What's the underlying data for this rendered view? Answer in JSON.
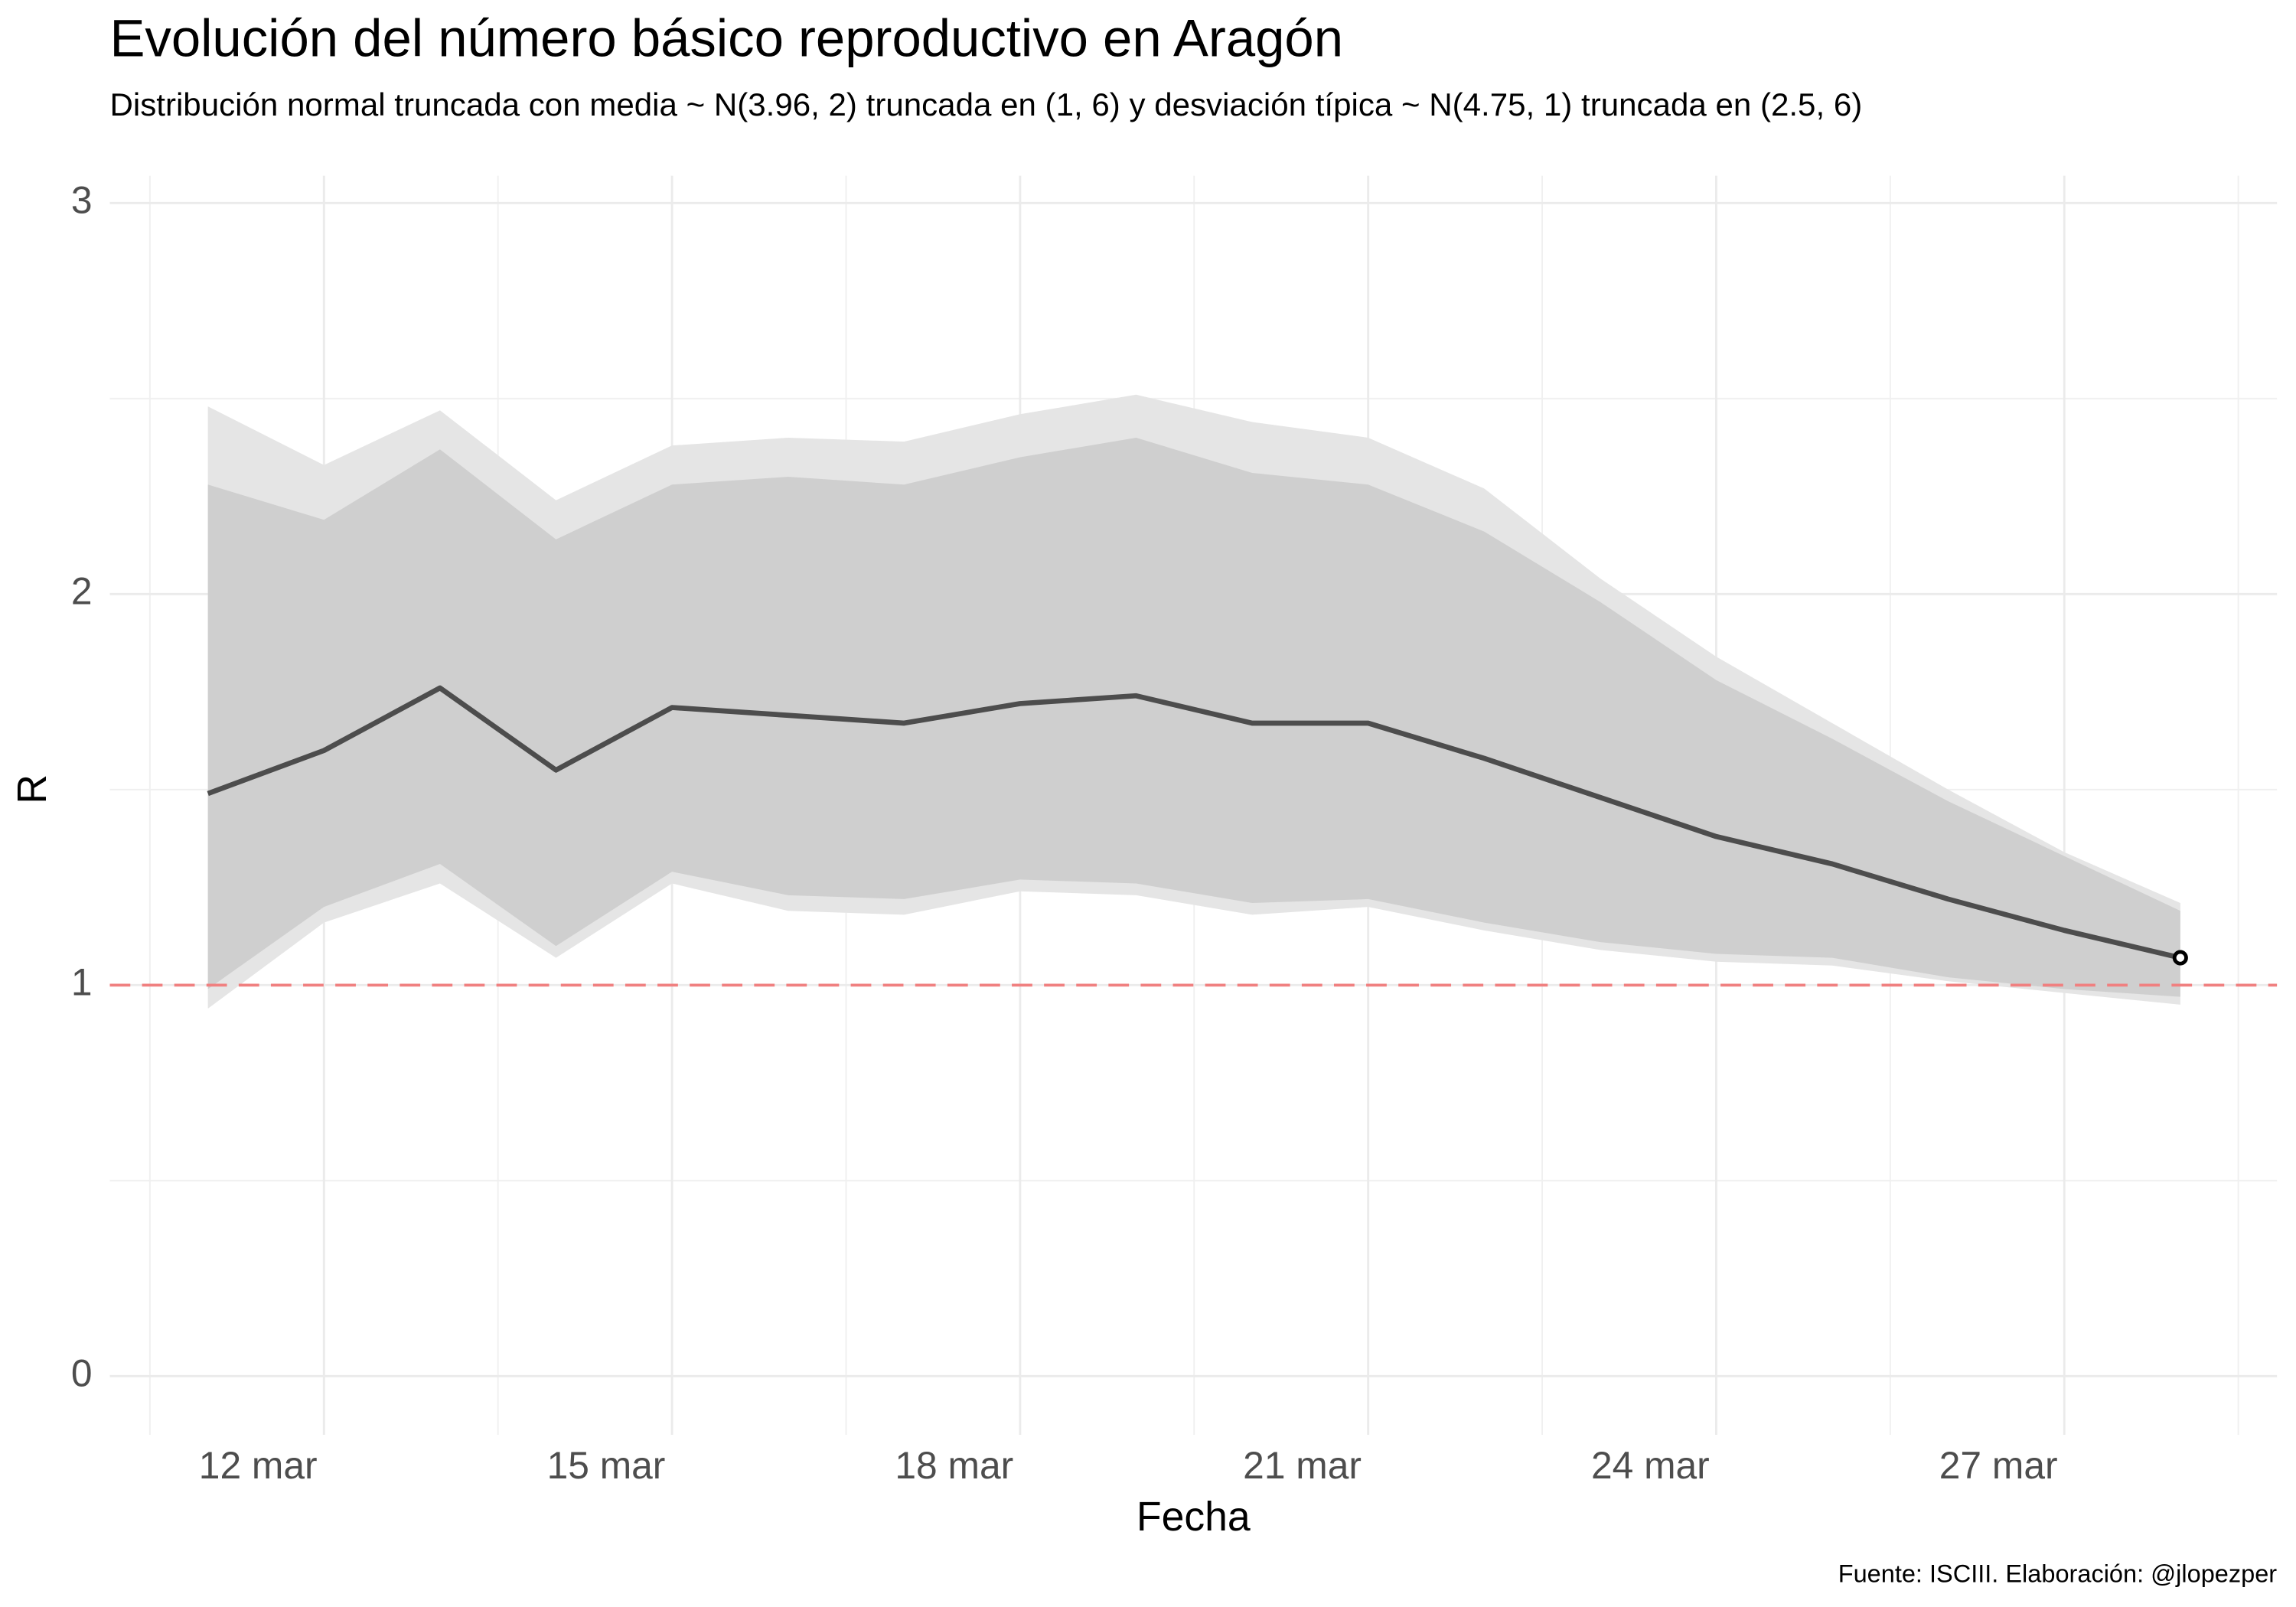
{
  "chart_data": {
    "type": "line",
    "title": "Evolución del número básico reproductivo en Aragón",
    "subtitle": "Distribución normal truncada con media ~ N(3.96, 2) truncada en (1, 6) y desviación típica ~ N(4.75, 1) truncada en (2.5, 6)",
    "caption": "Fuente: ISCIII. Elaboración: @jlopezper",
    "x_label": "Fecha",
    "y_label": "R",
    "x": [
      "11 mar",
      "12 mar",
      "13 mar",
      "14 mar",
      "15 mar",
      "16 mar",
      "17 mar",
      "18 mar",
      "19 mar",
      "20 mar",
      "21 mar",
      "22 mar",
      "23 mar",
      "24 mar",
      "25 mar",
      "26 mar",
      "27 mar",
      "28 mar"
    ],
    "xticks": [
      "12 mar",
      "15 mar",
      "18 mar",
      "21 mar",
      "24 mar",
      "27 mar"
    ],
    "values": [
      1.49,
      1.6,
      1.76,
      1.55,
      1.71,
      1.69,
      1.67,
      1.72,
      1.74,
      1.67,
      1.67,
      1.58,
      1.48,
      1.38,
      1.31,
      1.22,
      1.14,
      1.07
    ],
    "color": "#4d4d4d",
    "bands": [
      {
        "color": "#e5e5e5",
        "lower": [
          0.94,
          1.16,
          1.26,
          1.07,
          1.26,
          1.19,
          1.18,
          1.24,
          1.23,
          1.18,
          1.2,
          1.14,
          1.09,
          1.06,
          1.05,
          1.01,
          0.98,
          0.95
        ],
        "upper": [
          2.48,
          2.33,
          2.47,
          2.24,
          2.38,
          2.4,
          2.39,
          2.46,
          2.51,
          2.44,
          2.4,
          2.27,
          2.04,
          1.84,
          1.67,
          1.5,
          1.34,
          1.21
        ]
      },
      {
        "color": "#cfcfcf",
        "lower": [
          0.99,
          1.2,
          1.31,
          1.1,
          1.29,
          1.23,
          1.22,
          1.27,
          1.26,
          1.21,
          1.22,
          1.16,
          1.11,
          1.08,
          1.07,
          1.02,
          0.99,
          0.97
        ],
        "upper": [
          2.28,
          2.19,
          2.37,
          2.14,
          2.28,
          2.3,
          2.28,
          2.35,
          2.4,
          2.31,
          2.28,
          2.16,
          1.98,
          1.78,
          1.63,
          1.47,
          1.33,
          1.19
        ]
      }
    ],
    "reference_line": {
      "value": 1,
      "color": "#f08080"
    },
    "ylim": [
      -0.15,
      3.07
    ],
    "yticks": [
      0,
      1,
      2,
      3
    ],
    "grid": true
  }
}
